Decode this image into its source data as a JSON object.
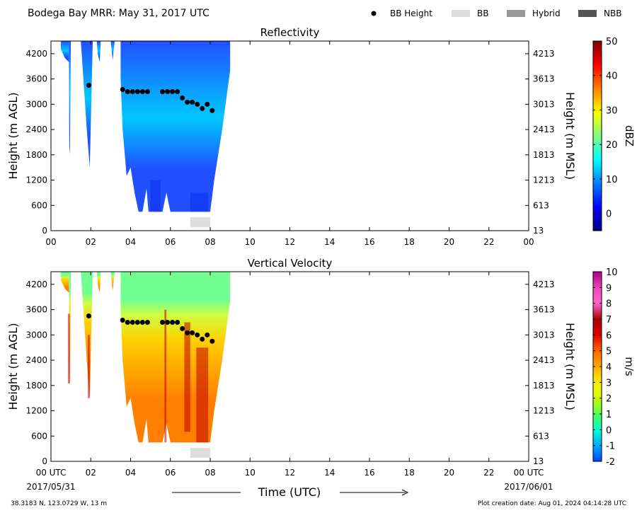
{
  "header": {
    "title": "Bodega Bay MRR:  May 31, 2017 UTC",
    "legend": [
      {
        "label": "BB Height",
        "kind": "dot",
        "color": "#000000"
      },
      {
        "label": "BB",
        "kind": "box",
        "color": "#dddddd"
      },
      {
        "label": "Hybrid",
        "kind": "box",
        "color": "#999999"
      },
      {
        "label": "NBB",
        "kind": "box",
        "color": "#555555"
      }
    ]
  },
  "footer": {
    "location": "38.3183 N, 123.0729 W, 13 m",
    "created": "Plot creation date: Aug 01, 2024 04:14:28 UTC",
    "start_date": "2017/05/31",
    "end_date": "2017/06/01",
    "xlabel": "Time (UTC)"
  },
  "chart_data": [
    {
      "type": "heatmap",
      "title": "Reflectivity",
      "ylabel_left": "Height (m AGL)",
      "ylabel_right": "Height (m MSL)",
      "colorbar_label": "dBZ",
      "colorbar_range": [
        -5,
        50
      ],
      "colorbar_ticks": [
        "0",
        "10",
        "20",
        "30",
        "40",
        "50"
      ],
      "colorbar_tick_values": [
        0,
        10,
        20,
        30,
        40,
        50
      ],
      "colorbar_colors": [
        "#000080",
        "#0000ff",
        "#0080ff",
        "#00ffff",
        "#80ff80",
        "#ffff00",
        "#ff8000",
        "#ff0000",
        "#800000"
      ],
      "field_colors": {
        "low": "#2050ff",
        "mid": "#00c8ff",
        "high": "#20ffa0"
      },
      "xlim": [
        0,
        24
      ],
      "ylim": [
        0,
        4500
      ],
      "x_ticks": [
        "00",
        "02",
        "04",
        "06",
        "08",
        "10",
        "12",
        "14",
        "16",
        "18",
        "20",
        "22",
        "00"
      ],
      "y_ticks_left": [
        "0",
        "600",
        "1200",
        "1800",
        "2400",
        "3000",
        "3600",
        "4200"
      ],
      "y_ticks_right": [
        "13",
        "613",
        "1213",
        "1813",
        "2413",
        "3013",
        "3613",
        "4213"
      ],
      "bb_height": [
        {
          "x": 1.9,
          "y": 3450
        },
        {
          "x": 3.6,
          "y": 3350
        },
        {
          "x": 3.85,
          "y": 3300
        },
        {
          "x": 4.1,
          "y": 3300
        },
        {
          "x": 4.35,
          "y": 3300
        },
        {
          "x": 4.6,
          "y": 3300
        },
        {
          "x": 4.85,
          "y": 3300
        },
        {
          "x": 5.6,
          "y": 3300
        },
        {
          "x": 5.85,
          "y": 3300
        },
        {
          "x": 6.1,
          "y": 3300
        },
        {
          "x": 6.35,
          "y": 3300
        },
        {
          "x": 6.6,
          "y": 3150
        },
        {
          "x": 6.85,
          "y": 3050
        },
        {
          "x": 7.1,
          "y": 3050
        },
        {
          "x": 7.35,
          "y": 3000
        },
        {
          "x": 7.6,
          "y": 2900
        },
        {
          "x": 7.85,
          "y": 3000
        },
        {
          "x": 8.1,
          "y": 2850
        }
      ],
      "bb_bar": {
        "x_start": 7.0,
        "x_end": 8.0,
        "type": "BB"
      }
    },
    {
      "type": "heatmap",
      "title": "Vertical Velocity",
      "ylabel_left": "Height (m AGL)",
      "ylabel_right": "Height (m MSL)",
      "colorbar_label": "m/s",
      "colorbar_range": [
        -2,
        10
      ],
      "colorbar_ticks": [
        "-2",
        "-1",
        "0",
        "1",
        "2",
        "3",
        "4",
        "5",
        "6",
        "7",
        "8",
        "9",
        "10"
      ],
      "colorbar_tick_values": [
        -2,
        -1,
        0,
        1,
        2,
        3,
        4,
        5,
        6,
        7,
        8,
        9,
        10
      ],
      "colorbar_colors": [
        "#0044ff",
        "#00aaff",
        "#00ffcc",
        "#55ff55",
        "#ccff00",
        "#ffee00",
        "#ffaa00",
        "#ff6600",
        "#dd0000",
        "#aa0000",
        "#ff66cc",
        "#ee44bb",
        "#aa0088"
      ],
      "field_colors": {
        "top": "#70ff90",
        "mid": "#ffd000",
        "low": "#ff8000",
        "streak": "#c00000"
      },
      "xlim": [
        0,
        24
      ],
      "ylim": [
        0,
        4500
      ],
      "x_ticks": [
        "00 UTC",
        "02",
        "04",
        "06",
        "08",
        "10",
        "12",
        "14",
        "16",
        "18",
        "20",
        "22",
        "00 UTC"
      ],
      "y_ticks_left": [
        "0",
        "600",
        "1200",
        "1800",
        "2400",
        "3000",
        "3600",
        "4200"
      ],
      "y_ticks_right": [
        "13",
        "613",
        "1213",
        "1813",
        "2413",
        "3013",
        "3613",
        "4213"
      ],
      "bb_height": [
        {
          "x": 1.9,
          "y": 3450
        },
        {
          "x": 3.6,
          "y": 3350
        },
        {
          "x": 3.85,
          "y": 3300
        },
        {
          "x": 4.1,
          "y": 3300
        },
        {
          "x": 4.35,
          "y": 3300
        },
        {
          "x": 4.6,
          "y": 3300
        },
        {
          "x": 4.85,
          "y": 3300
        },
        {
          "x": 5.6,
          "y": 3300
        },
        {
          "x": 5.85,
          "y": 3300
        },
        {
          "x": 6.1,
          "y": 3300
        },
        {
          "x": 6.35,
          "y": 3300
        },
        {
          "x": 6.6,
          "y": 3150
        },
        {
          "x": 6.85,
          "y": 3050
        },
        {
          "x": 7.1,
          "y": 3050
        },
        {
          "x": 7.35,
          "y": 3000
        },
        {
          "x": 7.6,
          "y": 2900
        },
        {
          "x": 7.85,
          "y": 3000
        },
        {
          "x": 8.1,
          "y": 2850
        }
      ],
      "bb_bar": {
        "x_start": 7.0,
        "x_end": 8.0,
        "type": "BB"
      }
    }
  ]
}
